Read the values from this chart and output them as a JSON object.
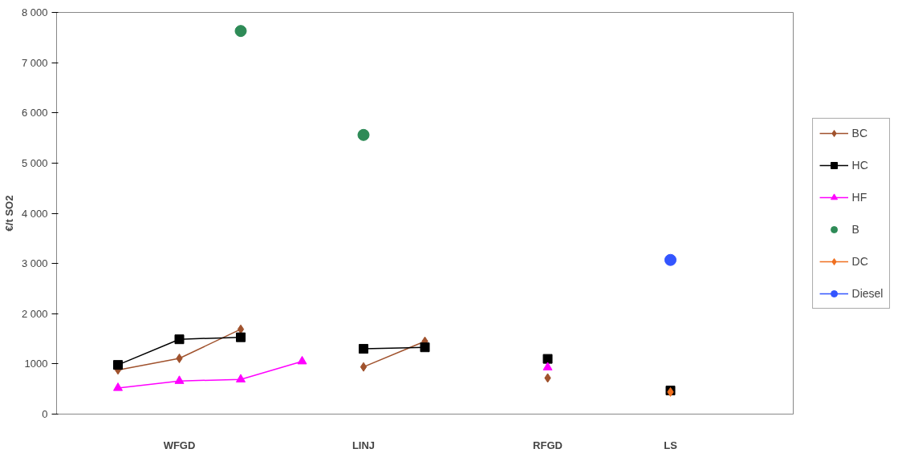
{
  "chart_data": {
    "type": "line",
    "ylabel": "€/t SO2",
    "categories": [
      null,
      "WFGD",
      null,
      null,
      "LINJ",
      null,
      null,
      "RFGD",
      null,
      "LS"
    ],
    "ylim": [
      0,
      8000
    ],
    "yticks": [
      0,
      {
        "value": 1000,
        "label": "1000"
      },
      {
        "value": 2000,
        "label": "2 000"
      },
      {
        "value": 3000,
        "label": "3 000"
      },
      {
        "value": 4000,
        "label": "4 000"
      },
      {
        "value": 5000,
        "label": "5 000"
      },
      {
        "value": 6000,
        "label": "6 000"
      },
      {
        "value": 7000,
        "label": "7 000"
      },
      {
        "value": 8000,
        "label": "8 000"
      }
    ],
    "grid": false,
    "legend": "right",
    "line_style": "solid",
    "series": [
      {
        "name": "BC",
        "color": "#a0522d",
        "marker": "diamond",
        "values": [
          880,
          1110,
          1690,
          null,
          940,
          1450,
          null,
          720,
          null,
          null
        ]
      },
      {
        "name": "HC",
        "color": "#000000",
        "marker": "square",
        "values": [
          980,
          1490,
          1530,
          null,
          1300,
          1330,
          null,
          1100,
          null,
          470
        ]
      },
      {
        "name": "HF",
        "color": "#ff00ff",
        "marker": "triangle",
        "values": [
          520,
          660,
          690,
          1050,
          null,
          null,
          null,
          930,
          null,
          null
        ]
      },
      {
        "name": "B",
        "type": "scatter",
        "color": "#2e8b57",
        "marker": "circle",
        "values": [
          null,
          null,
          7630,
          null,
          5560,
          null,
          null,
          null,
          null,
          null
        ]
      },
      {
        "name": "DC",
        "color": "#f07020",
        "marker": "diamond",
        "values": [
          null,
          null,
          null,
          null,
          null,
          null,
          null,
          null,
          null,
          440
        ]
      },
      {
        "name": "Diesel",
        "color": "#3355ff",
        "marker": "circle",
        "values": [
          null,
          null,
          null,
          null,
          null,
          null,
          null,
          null,
          null,
          3070
        ]
      }
    ]
  }
}
